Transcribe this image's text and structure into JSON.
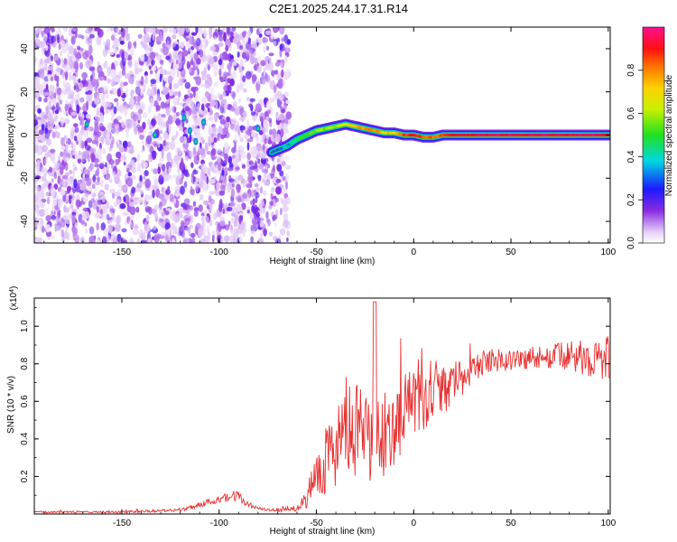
{
  "title": "C2E1.2025.244.17.31.R14",
  "chart_data": [
    {
      "type": "heatmap",
      "xlabel": "Height of straight line (km)",
      "ylabel": "Frequency (Hz)",
      "xlim": [
        -195,
        101
      ],
      "ylim": [
        -50,
        50
      ],
      "x_ticks": [
        -150,
        -100,
        -50,
        0,
        50,
        100
      ],
      "y_ticks": [
        -40,
        -20,
        0,
        20,
        40
      ],
      "noise_region_x": [
        -195,
        -64
      ],
      "ridge": {
        "x": [
          -73,
          -65,
          -60,
          -55,
          -50,
          -45,
          -40,
          -35,
          -30,
          -25,
          -20,
          -15,
          -10,
          -5,
          0,
          5,
          10,
          15,
          20,
          30,
          40,
          60,
          80,
          100
        ],
        "y": [
          -8,
          -5,
          -2,
          0,
          2,
          3,
          4,
          5,
          4,
          3,
          2,
          1,
          1,
          0,
          0,
          -1,
          -1,
          0,
          0,
          0,
          0,
          0,
          0,
          0
        ],
        "amplitude": [
          0.3,
          0.35,
          0.45,
          0.5,
          0.55,
          0.55,
          0.6,
          0.7,
          0.75,
          0.8,
          0.8,
          0.7,
          0.75,
          0.85,
          0.9,
          0.85,
          0.8,
          0.85,
          0.9,
          0.95,
          0.95,
          0.95,
          0.95,
          0.95
        ]
      },
      "colorbar": {
        "label": "Normalized spectral amplitude",
        "range": [
          0,
          1
        ],
        "ticks": [
          "0.0",
          "0.2",
          "0.4",
          "0.6",
          "0.8"
        ]
      }
    },
    {
      "type": "line",
      "xlabel": "Height of straight line (km)",
      "ylabel": "SNR (10 * v/v)",
      "y_multiplier": "(x10",
      "y_multiplier_exp": "4",
      "y_multiplier_close": ")",
      "xlim": [
        -195,
        101
      ],
      "ylim": [
        0,
        1.15
      ],
      "x_ticks": [
        -150,
        -100,
        -50,
        0,
        50,
        100
      ],
      "y_ticks": [
        0.2,
        0.4,
        0.6,
        0.8,
        1.0
      ],
      "series": [
        {
          "color": "#e83030",
          "x": [
            -195,
            -150,
            -120,
            -110,
            -100,
            -95,
            -90,
            -85,
            -80,
            -75,
            -70,
            -60,
            -55,
            -50,
            -45,
            -40,
            -35,
            -30,
            -25,
            -20,
            -15,
            -10,
            -5,
            0,
            5,
            10,
            15,
            20,
            25,
            30,
            35,
            40,
            50,
            60,
            70,
            80,
            90,
            100
          ],
          "y": [
            0.01,
            0.01,
            0.02,
            0.05,
            0.08,
            0.1,
            0.09,
            0.05,
            0.03,
            0.02,
            0.02,
            0.03,
            0.08,
            0.22,
            0.3,
            0.35,
            0.45,
            0.42,
            0.4,
            0.38,
            0.42,
            0.48,
            0.55,
            0.6,
            0.58,
            0.62,
            0.65,
            0.7,
            0.72,
            0.78,
            0.8,
            0.82,
            0.82,
            0.83,
            0.84,
            0.84,
            0.83,
            0.82
          ],
          "noise": [
            0.003,
            0.004,
            0.005,
            0.01,
            0.015,
            0.02,
            0.02,
            0.01,
            0.005,
            0.005,
            0.005,
            0.01,
            0.03,
            0.09,
            0.12,
            0.14,
            0.18,
            0.17,
            0.16,
            0.15,
            0.14,
            0.14,
            0.13,
            0.12,
            0.1,
            0.1,
            0.08,
            0.07,
            0.06,
            0.05,
            0.04,
            0.04,
            0.04,
            0.04,
            0.04,
            0.05,
            0.06,
            0.08
          ]
        }
      ]
    }
  ]
}
